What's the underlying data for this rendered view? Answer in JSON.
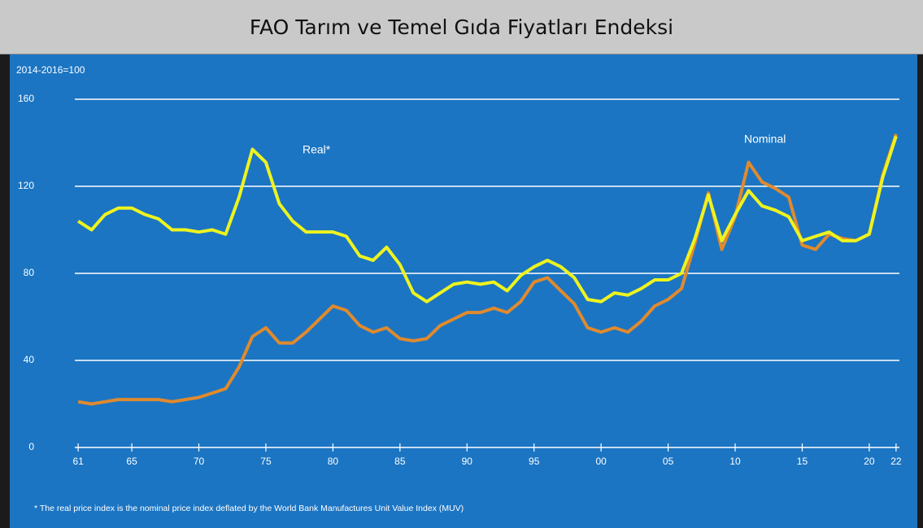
{
  "chart_data": {
    "type": "line",
    "title": "FAO Tarım ve Temel Gıda Fiyatları Endeksi",
    "y_label": "2014-2016=100",
    "footnote": "* The real price index is the nominal price index deflated by the World Bank Manufactures Unit Value Index (MUV)",
    "x": [
      1961,
      1962,
      1963,
      1964,
      1965,
      1966,
      1967,
      1968,
      1969,
      1970,
      1971,
      1972,
      1973,
      1974,
      1975,
      1976,
      1977,
      1978,
      1979,
      1980,
      1981,
      1982,
      1983,
      1984,
      1985,
      1986,
      1987,
      1988,
      1989,
      1990,
      1991,
      1992,
      1993,
      1994,
      1995,
      1996,
      1997,
      1998,
      1999,
      2000,
      2001,
      2002,
      2003,
      2004,
      2005,
      2006,
      2007,
      2008,
      2009,
      2010,
      2011,
      2012,
      2013,
      2014,
      2015,
      2016,
      2017,
      2018,
      2019,
      2020,
      2021,
      2022
    ],
    "series": [
      {
        "name": "Nominal",
        "color": "#e08a2e",
        "values": [
          21,
          20,
          21,
          22,
          22,
          22,
          22,
          21,
          22,
          23,
          25,
          27,
          37,
          51,
          55,
          48,
          48,
          53,
          59,
          65,
          63,
          56,
          53,
          55,
          50,
          49,
          50,
          56,
          59,
          62,
          62,
          64,
          62,
          67,
          76,
          78,
          72,
          66,
          55,
          53,
          55,
          53,
          58,
          65,
          68,
          73,
          94,
          117,
          91,
          106,
          131,
          122,
          119,
          115,
          93,
          91,
          98,
          96,
          95,
          98,
          125,
          144
        ]
      },
      {
        "name": "Real*",
        "color": "#eef31f",
        "values": [
          104,
          100,
          107,
          110,
          110,
          107,
          105,
          100,
          100,
          99,
          100,
          98,
          115,
          137,
          131,
          112,
          104,
          99,
          99,
          99,
          97,
          88,
          86,
          92,
          84,
          71,
          67,
          71,
          75,
          76,
          75,
          76,
          72,
          79,
          83,
          86,
          83,
          78,
          68,
          67,
          71,
          70,
          73,
          77,
          77,
          80,
          96,
          116,
          95,
          107,
          118,
          111,
          109,
          106,
          95,
          97,
          99,
          95,
          95,
          98,
          124,
          143
        ]
      }
    ],
    "xlim": [
      1960.75,
      2022.25
    ],
    "xticks": [
      {
        "value": 1961,
        "label": "61"
      },
      {
        "value": 1965,
        "label": "65"
      },
      {
        "value": 1970,
        "label": "70"
      },
      {
        "value": 1975,
        "label": "75"
      },
      {
        "value": 1980,
        "label": "80"
      },
      {
        "value": 1985,
        "label": "85"
      },
      {
        "value": 1990,
        "label": "90"
      },
      {
        "value": 1995,
        "label": "95"
      },
      {
        "value": 2000,
        "label": "00"
      },
      {
        "value": 2005,
        "label": "05"
      },
      {
        "value": 2010,
        "label": "10"
      },
      {
        "value": 2015,
        "label": "15"
      },
      {
        "value": 2020,
        "label": "20"
      },
      {
        "value": 2022,
        "label": "22"
      }
    ],
    "ylim": [
      0,
      160
    ],
    "yticks": [
      0,
      40,
      80,
      120,
      160
    ],
    "grid": true
  }
}
